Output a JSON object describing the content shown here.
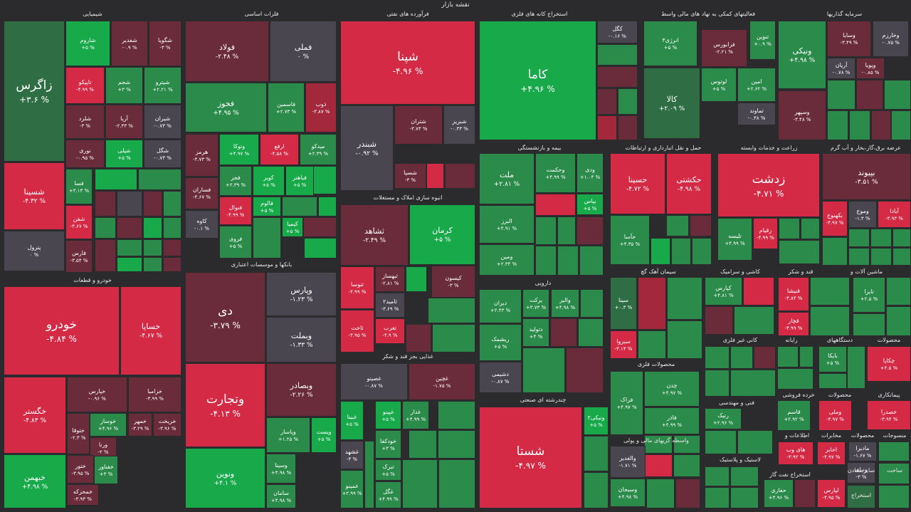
{
  "title": "نقشه بازار",
  "colors": {
    "strong_green": "#18a94a",
    "green": "#2b8b4a",
    "dark_green": "#2f6e45",
    "neutral": "#4a4650",
    "dark_red": "#6a2b3b",
    "red": "#a3283c",
    "strong_red": "#d42a45",
    "background": "#2b2b2e"
  },
  "sectors": [
    "شیمیایی",
    "فلزات اساسی",
    "فرآورده های نفتی",
    "استخراج کانه های فلزی",
    "فعالیتهای کمکی به نهاد های مالی واسط",
    "سرمایه گذاریها",
    "خودرو و قطعات",
    "بانکها و موسسات اعتباری",
    "انبوه سازی املاک و مستغلات",
    "بیمه و بازنشستگی",
    "حمل و نقل انبارداری و ارتباطات",
    "زراعت و خدمات وابسته",
    "عرضه برق،گاز،بخار و آب گرم",
    "محصولات کاغذی",
    "غذایی بجز قند و شکر",
    "دارویی",
    "سیمان آهک گچ",
    "کاشی و سرامیک",
    "قند و شکر",
    "ماشین آلات و",
    "چندرشته ای صنعتی",
    "کانی غیر فلزی",
    "رایانه",
    "دستگاههای",
    "محصولات",
    "محصولات فلزی",
    "فنی و مهندسی",
    "خرده فروشی",
    "محصولات",
    "پیمانکاری",
    "واسطه گریهای مالی و پولی",
    "لاستیک و پلاستیک",
    "اطلاعات و",
    "مخابرات",
    "محصولات",
    "منسوجات",
    "استخراج نفت گاز",
    "سایر معادن",
    "ساخت",
    "استخراج"
  ],
  "stocks": [
    {
      "name": "زاگرس",
      "change": "+۳.۶ %",
      "level": "dark_green"
    },
    {
      "name": "شاروم",
      "change": "+۵ %",
      "level": "strong_green"
    },
    {
      "name": "شفدیر",
      "change": "-۰.۹ %",
      "level": "dark_red"
    },
    {
      "name": "شگویا",
      "change": "-۳ %",
      "level": "dark_red"
    },
    {
      "name": "تاپیکو",
      "change": "-۴.۹۹ %",
      "level": "strong_red"
    },
    {
      "name": "شجم",
      "change": "+۳ %",
      "level": "green"
    },
    {
      "name": "شیترو",
      "change": "+۲.۲۱ %",
      "level": "green"
    },
    {
      "name": "شلرد",
      "change": "-۳ %",
      "level": "dark_red"
    },
    {
      "name": "آریا",
      "change": "-۲.۳۳ %",
      "level": "dark_red"
    },
    {
      "name": "شیران",
      "change": "-۰.۷۳ %",
      "level": "neutral"
    },
    {
      "name": "نوری",
      "change": "-۰.۹۵ %",
      "level": "dark_red"
    },
    {
      "name": "شپلی",
      "change": "+۵ %",
      "level": "strong_green"
    },
    {
      "name": "شگل",
      "change": "-۰.۷۳ %",
      "level": "neutral"
    },
    {
      "name": "شسینا",
      "change": "-۴.۳۲ %",
      "level": "strong_red"
    },
    {
      "name": "فسا",
      "change": "+۳.۱۳ %",
      "level": "green"
    },
    {
      "name": "شفن",
      "change": "-۴.۶۷ %",
      "level": "strong_red"
    },
    {
      "name": "پترول",
      "change": "۰ %",
      "level": "neutral"
    },
    {
      "name": "فارس",
      "change": "-۳.۵۴ %",
      "level": "dark_red"
    },
    {
      "name": "فولاد",
      "change": "-۲.۴۸ %",
      "level": "dark_red"
    },
    {
      "name": "فملی",
      "change": "۰ %",
      "level": "neutral"
    },
    {
      "name": "فخوز",
      "change": "+۴.۹۵ %",
      "level": "green"
    },
    {
      "name": "فاسمین",
      "change": "+۲.۷۳ %",
      "level": "green"
    },
    {
      "name": "ذوب",
      "change": "-۳.۸۷ %",
      "level": "red"
    },
    {
      "name": "هرمز",
      "change": "-۴.۷۳ %",
      "level": "dark_red"
    },
    {
      "name": "وتوکا",
      "change": "+۴.۹۷ %",
      "level": "strong_green"
    },
    {
      "name": "ارفع",
      "change": "-۴.۵۸ %",
      "level": "strong_red"
    },
    {
      "name": "میدکو",
      "change": "+۲.۳۹ %",
      "level": "green"
    },
    {
      "name": "فجر",
      "change": "+۲.۳۹ %",
      "level": "green"
    },
    {
      "name": "کویر",
      "change": "+۵ %",
      "level": "strong_green"
    },
    {
      "name": "فباهنر",
      "change": "+۵ %",
      "level": "strong_green"
    },
    {
      "name": "فساران",
      "change": "-۴.۶۷ %",
      "level": "dark_red"
    },
    {
      "name": "فنوال",
      "change": "-۴.۹۹ %",
      "level": "strong_red"
    },
    {
      "name": "فالوم",
      "change": "+۵ %",
      "level": "strong_green"
    },
    {
      "name": "کاوه",
      "change": "-۰.۱ %",
      "level": "neutral"
    },
    {
      "name": "فروی",
      "change": "+۵ %",
      "level": "green"
    },
    {
      "name": "کیمیا",
      "change": "+۵ %",
      "level": "strong_green"
    },
    {
      "name": "شپنا",
      "change": "-۴.۹۶ %",
      "level": "strong_red"
    },
    {
      "name": "شبندر",
      "change": "-۰.۹۲ %",
      "level": "neutral"
    },
    {
      "name": "شتران",
      "change": "-۳.۷۳ %",
      "level": "dark_red"
    },
    {
      "name": "شبریز",
      "change": "-۰.۳۳ %",
      "level": "neutral"
    },
    {
      "name": "شسپا",
      "change": "-۳ %",
      "level": "dark_red"
    },
    {
      "name": "کاما",
      "change": "+۴.۹۶ %",
      "level": "strong_green"
    },
    {
      "name": "کگل",
      "change": "-۰.۱۶ %",
      "level": "neutral"
    },
    {
      "name": "انرژی۳",
      "change": "+۵ %",
      "level": "green"
    },
    {
      "name": "فرابورس",
      "change": "-۲.۲۱ %",
      "level": "dark_red"
    },
    {
      "name": "تنوین",
      "change": "+۰.۹ %",
      "level": "green"
    },
    {
      "name": "لوتوس",
      "change": "+۵ %",
      "level": "green"
    },
    {
      "name": "امین",
      "change": "+۲.۶۲ %",
      "level": "green"
    },
    {
      "name": "کالا",
      "change": "+۲.۰۹ %",
      "level": "dark_green"
    },
    {
      "name": "تماوند",
      "change": "-۰.۳۸ %",
      "level": "neutral"
    },
    {
      "name": "ونیکی",
      "change": "+۴.۹۸ %",
      "level": "green"
    },
    {
      "name": "وسایا",
      "change": "-۳.۴۹ %",
      "level": "dark_red"
    },
    {
      "name": "وخارزم",
      "change": "-۰.۷۵ %",
      "level": "neutral"
    },
    {
      "name": "آریان",
      "change": "-۰.۷۸ %",
      "level": "neutral"
    },
    {
      "name": "وپویا",
      "change": "-۰.۸۵ %",
      "level": "dark_red"
    },
    {
      "name": "وسپهر",
      "change": "-۳.۴۸ %",
      "level": "dark_red"
    },
    {
      "name": "خودرو",
      "change": "-۴.۸۴ %",
      "level": "strong_red"
    },
    {
      "name": "خساپا",
      "change": "-۴.۶۷ %",
      "level": "strong_red"
    },
    {
      "name": "خگستر",
      "change": "-۴.۸۳ %",
      "level": "strong_red"
    },
    {
      "name": "خپارس",
      "change": "-۰.۹۶ %",
      "level": "dark_red"
    },
    {
      "name": "خزامیا",
      "change": "-۳.۹۹ %",
      "level": "dark_red"
    },
    {
      "name": "خوساز",
      "change": "+۴.۹۶ %",
      "level": "green"
    },
    {
      "name": "خمهر",
      "change": "-۳.۲۹ %",
      "level": "dark_red"
    },
    {
      "name": "خریخت",
      "change": "-۳.۹۶ %",
      "level": "dark_red"
    },
    {
      "name": "ختوقا",
      "change": "-۲.۳ %",
      "level": "dark_red"
    },
    {
      "name": "ورنا",
      "change": "-۲ %",
      "level": "dark_red"
    },
    {
      "name": "ختور",
      "change": "-۳.۹۵ %",
      "level": "dark_red"
    },
    {
      "name": "خفناور",
      "change": "+۳ %",
      "level": "green"
    },
    {
      "name": "خبهمن",
      "change": "+۴.۹۸ %",
      "level": "strong_green"
    },
    {
      "name": "خمحرکه",
      "change": "-۳.۹۳ %",
      "level": "dark_red"
    },
    {
      "name": "دی",
      "change": "-۳.۷۹ %",
      "level": "dark_red"
    },
    {
      "name": "وپارس",
      "change": "-۱.۲۳ %",
      "level": "neutral"
    },
    {
      "name": "وبملت",
      "change": "-۱.۳۳ %",
      "level": "neutral"
    },
    {
      "name": "وتجارت",
      "change": "-۴.۱۳ %",
      "level": "strong_red"
    },
    {
      "name": "وبصادر",
      "change": "-۲.۲۶ %",
      "level": "dark_red"
    },
    {
      "name": "وپاسار",
      "change": "+۱.۲۵ %",
      "level": "green"
    },
    {
      "name": "ویست",
      "change": "+۵ %",
      "level": "strong_green"
    },
    {
      "name": "ونوین",
      "change": "+۴.۱ %",
      "level": "strong_green"
    },
    {
      "name": "وسینا",
      "change": "+۴.۹۸ %",
      "level": "green"
    },
    {
      "name": "سامان",
      "change": "+۴.۹۸ %",
      "level": "green"
    },
    {
      "name": "ثشاهد",
      "change": "-۲.۴۹ %",
      "level": "dark_red"
    },
    {
      "name": "ثنوسا",
      "change": "-۴.۹۹ %",
      "level": "strong_red"
    },
    {
      "name": "ثبهساز",
      "change": "-۲.۸۱ %",
      "level": "dark_red"
    },
    {
      "name": "ثامید",
      "change": "-۳.۶۹ %",
      "level": "neutral"
    },
    {
      "name": "ثاخت",
      "change": "-۴.۹۵ %",
      "level": "strong_red"
    },
    {
      "name": "کرمان",
      "change": "+۵ %",
      "level": "strong_green"
    },
    {
      "name": "کیسون",
      "change": "-۳ %",
      "level": "dark_red"
    },
    {
      "name": "ملت",
      "change": "+۲.۸۱ %",
      "level": "green"
    },
    {
      "name": "وحکمت",
      "change": "+۴.۹۹ %",
      "level": "green"
    },
    {
      "name": "ودی",
      "change": "+۱.۰۴ %",
      "level": "green"
    },
    {
      "name": "بپاس",
      "change": "+۵ %",
      "level": "strong_green"
    },
    {
      "name": "البرز",
      "change": "+۴.۹۱ %",
      "level": "green"
    },
    {
      "name": "ومین",
      "change": "+۲.۳۴ %",
      "level": "green"
    },
    {
      "name": "حسینا",
      "change": "-۴.۷۲ %",
      "level": "strong_red"
    },
    {
      "name": "حکشتی",
      "change": "-۴.۹۸ %",
      "level": "strong_red"
    },
    {
      "name": "حآسا",
      "change": "+۴.۳۵ %",
      "level": "green"
    },
    {
      "name": "زدشت",
      "change": "-۴.۷۱ %",
      "level": "strong_red"
    },
    {
      "name": "زقیام",
      "change": "-۴.۹۹ %",
      "level": "strong_red"
    },
    {
      "name": "تلیسه",
      "change": "+۴.۹۹ %",
      "level": "green"
    },
    {
      "name": "بپیوند",
      "change": "-۳.۵۱ %",
      "level": "dark_red"
    },
    {
      "name": "بکهنوج",
      "change": "-۴.۹۷ %",
      "level": "strong_red"
    },
    {
      "name": "وموج",
      "change": "-۱.۳ %",
      "level": "neutral"
    },
    {
      "name": "آبادا",
      "change": "-۴.۹۳ %",
      "level": "strong_red"
    },
    {
      "name": "غصینو",
      "change": "-۰.۸۷ %",
      "level": "neutral"
    },
    {
      "name": "غچین",
      "change": "-۱.۷۵ %",
      "level": "dark_red"
    },
    {
      "name": "غبینا",
      "change": "+۵ %",
      "level": "strong_green"
    },
    {
      "name": "غپینو",
      "change": "+۵ %",
      "level": "strong_green"
    },
    {
      "name": "غدار",
      "change": "+۴.۹۹ %",
      "level": "green"
    },
    {
      "name": "خودکفا",
      "change": "+۳ %",
      "level": "green"
    },
    {
      "name": "غشهد",
      "change": "-۳ %",
      "level": "neutral"
    },
    {
      "name": "تبرک",
      "change": "+۵ %",
      "level": "green"
    },
    {
      "name": "غمینو",
      "change": "+۲.۹۹ %",
      "level": "green"
    },
    {
      "name": "غگل",
      "change": "+۴.۹۹ %",
      "level": "green"
    },
    {
      "name": "ثامید۲",
      "change": "-۳.۶۹ %",
      "level": "neutral"
    },
    {
      "name": "تغرب",
      "change": "-۴.۹ %",
      "level": "strong_red"
    },
    {
      "name": "دیران",
      "change": "+۲.۴۳ %",
      "level": "green"
    },
    {
      "name": "برکت",
      "change": "+۳.۷۳ %",
      "level": "green"
    },
    {
      "name": "والبر",
      "change": "+۴.۹۸ %",
      "level": "green"
    },
    {
      "name": "دتولید",
      "change": "+۴ %",
      "level": "green"
    },
    {
      "name": "ریشمک",
      "change": "+۵ %",
      "level": "green"
    },
    {
      "name": "دشیمی",
      "change": "-۰.۸۷ %",
      "level": "neutral"
    },
    {
      "name": "سینا",
      "change": "+۰.۳ %",
      "level": "dark_green"
    },
    {
      "name": "سبزوا",
      "change": "-۴.۱۴ %",
      "level": "strong_red"
    },
    {
      "name": "کپارس",
      "change": "+۴.۸۱ %",
      "level": "green"
    },
    {
      "name": "قنیشا",
      "change": "-۴.۸۴ %",
      "level": "strong_red"
    },
    {
      "name": "قچار",
      "change": "-۴.۹۹ %",
      "level": "strong_red"
    },
    {
      "name": "تایرا",
      "change": "+۲.۵ %",
      "level": "green"
    },
    {
      "name": "شستا",
      "change": "-۴.۹۷ %",
      "level": "strong_red"
    },
    {
      "name": "ونیکی۲",
      "change": "+۵ %",
      "level": "strong_green"
    },
    {
      "name": "فزاک",
      "change": "+۴.۹۷ %",
      "level": "green"
    },
    {
      "name": "چدن",
      "change": "+۴.۹۷ %",
      "level": "green"
    },
    {
      "name": "فاذر",
      "change": "+۴.۹۹ %",
      "level": "green"
    },
    {
      "name": "رنیک",
      "change": "+۲.۹۶ %",
      "level": "green"
    },
    {
      "name": "بایکا",
      "change": "+۵ %",
      "level": "green"
    },
    {
      "name": "چکاپا",
      "change": "+۴.۵ %",
      "level": "strong_red"
    },
    {
      "name": "قاسم",
      "change": "+۲.۹۲ %",
      "level": "green"
    },
    {
      "name": "وملی",
      "change": "-۴.۹۷ %",
      "level": "strong_red"
    },
    {
      "name": "خصدرا",
      "change": "-۳.۹۴ %",
      "level": "strong_red"
    },
    {
      "name": "والغدیر",
      "change": "-۱.۷۱ %",
      "level": "neutral"
    },
    {
      "name": "وسبحان",
      "change": "+۴.۹۸ %",
      "level": "green"
    },
    {
      "name": "های وب",
      "change": "-۳.۹۲ %",
      "level": "strong_red"
    },
    {
      "name": "اخابر",
      "change": "-۴.۹۷ %",
      "level": "strong_red"
    },
    {
      "name": "مادیرا",
      "change": "-۱.۶۷ %",
      "level": "neutral"
    },
    {
      "name": "حفاری",
      "change": "+۴.۹۶ %",
      "level": "green"
    },
    {
      "name": "لپارس",
      "change": "-۴.۹۵ %",
      "level": "strong_red"
    },
    {
      "name": "ونپای",
      "change": "-۳ %",
      "level": "neutral"
    }
  ]
}
